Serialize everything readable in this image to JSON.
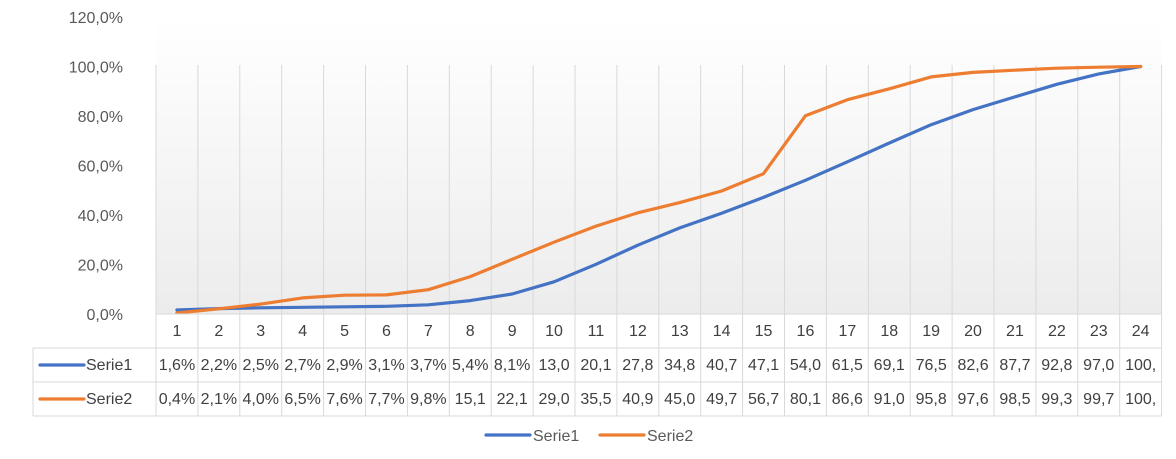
{
  "chart_data": {
    "type": "line",
    "categories": [
      "1",
      "2",
      "3",
      "4",
      "5",
      "6",
      "7",
      "8",
      "9",
      "10",
      "11",
      "12",
      "13",
      "14",
      "15",
      "16",
      "17",
      "18",
      "19",
      "20",
      "21",
      "22",
      "23",
      "24"
    ],
    "ylim": [
      0,
      120
    ],
    "y_ticks": [
      "0,0%",
      "20,0%",
      "40,0%",
      "60,0%",
      "80,0%",
      "100,0%",
      "120,0%"
    ],
    "grid": "vertical",
    "legend_position": "bottom",
    "series": [
      {
        "name": "Serie1",
        "color": "#4472C4",
        "values": [
          1.6,
          2.2,
          2.5,
          2.7,
          2.9,
          3.1,
          3.7,
          5.4,
          8.1,
          13.0,
          20.1,
          27.8,
          34.8,
          40.7,
          47.1,
          54.0,
          61.5,
          69.1,
          76.5,
          82.6,
          87.7,
          92.8,
          97.0,
          100.0
        ],
        "table_labels": [
          "1,6%",
          "2,2%",
          "2,5%",
          "2,7%",
          "2,9%",
          "3,1%",
          "3,7%",
          "5,4%",
          "8,1%",
          "13,0",
          "20,1",
          "27,8",
          "34,8",
          "40,7",
          "47,1",
          "54,0",
          "61,5",
          "69,1",
          "76,5",
          "82,6",
          "87,7",
          "92,8",
          "97,0",
          "100,"
        ]
      },
      {
        "name": "Serie2",
        "color": "#ED7D31",
        "values": [
          0.4,
          2.1,
          4.0,
          6.5,
          7.6,
          7.7,
          9.8,
          15.1,
          22.1,
          29.0,
          35.5,
          40.9,
          45.0,
          49.7,
          56.7,
          80.1,
          86.6,
          91.0,
          95.8,
          97.6,
          98.5,
          99.3,
          99.7,
          100.0
        ],
        "table_labels": [
          "0,4%",
          "2,1%",
          "4,0%",
          "6,5%",
          "7,6%",
          "7,7%",
          "9,8%",
          "15,1",
          "22,1",
          "29,0",
          "35,5",
          "40,9",
          "45,0",
          "49,7",
          "56,7",
          "80,1",
          "86,6",
          "91,0",
          "95,8",
          "97,6",
          "98,5",
          "99,3",
          "99,7",
          "100,"
        ]
      }
    ]
  }
}
